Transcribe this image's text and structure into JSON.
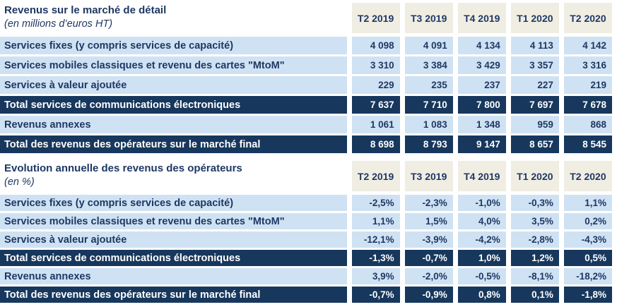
{
  "colors": {
    "dark_row_bg": "#17375d",
    "light_row_bg": "#cfe2f3",
    "column_header_bg": "#f0ede3",
    "navy_text": "#1f3864",
    "dark_row_text": "#ffffff"
  },
  "chart_data": [
    {
      "type": "table",
      "title": "Revenus sur le marché de détail",
      "subtitle": "(en millions d’euros HT)",
      "unit": "millions d’euros HT",
      "columns": [
        "T2 2019",
        "T3 2019",
        "T4 2019",
        "T1 2020",
        "T2 2020"
      ],
      "rows": [
        {
          "label": "Services fixes (y compris services de capacité)",
          "style": "light",
          "display": [
            "4 098",
            "4 091",
            "4 134",
            "4 113",
            "4 142"
          ],
          "values": [
            4098,
            4091,
            4134,
            4113,
            4142
          ]
        },
        {
          "label": "Services mobiles classiques et revenu des cartes \"MtoM\"",
          "style": "light",
          "display": [
            "3 310",
            "3 384",
            "3 429",
            "3 357",
            "3 316"
          ],
          "values": [
            3310,
            3384,
            3429,
            3357,
            3316
          ]
        },
        {
          "label": "Services à valeur ajoutée",
          "style": "light",
          "display": [
            "229",
            "235",
            "237",
            "227",
            "219"
          ],
          "values": [
            229,
            235,
            237,
            227,
            219
          ]
        },
        {
          "label": "Total services de communications électroniques",
          "style": "dark",
          "display": [
            "7 637",
            "7 710",
            "7 800",
            "7 697",
            "7 678"
          ],
          "values": [
            7637,
            7710,
            7800,
            7697,
            7678
          ]
        },
        {
          "label": "Revenus annexes",
          "style": "light",
          "display": [
            "1 061",
            "1 083",
            "1 348",
            "959",
            "868"
          ],
          "values": [
            1061,
            1083,
            1348,
            959,
            868
          ]
        },
        {
          "label": "Total des revenus des opérateurs sur le marché final",
          "style": "dark",
          "display": [
            "8 698",
            "8 793",
            "9 147",
            "8 657",
            "8 545"
          ],
          "values": [
            8698,
            8793,
            9147,
            8657,
            8545
          ]
        }
      ]
    },
    {
      "type": "table",
      "title": "Evolution annuelle des revenus des opérateurs",
      "subtitle": "(en %)",
      "unit": "%",
      "columns": [
        "T2 2019",
        "T3 2019",
        "T4 2019",
        "T1 2020",
        "T2 2020"
      ],
      "rows": [
        {
          "label": "Services fixes (y compris services de capacité)",
          "style": "light",
          "display": [
            "-2,5%",
            "-2,3%",
            "-1,0%",
            "-0,3%",
            "1,1%"
          ],
          "values": [
            -2.5,
            -2.3,
            -1.0,
            -0.3,
            1.1
          ]
        },
        {
          "label": "Services mobiles classiques et revenu des cartes \"MtoM\"",
          "style": "light",
          "display": [
            "1,1%",
            "1,5%",
            "4,0%",
            "3,5%",
            "0,2%"
          ],
          "values": [
            1.1,
            1.5,
            4.0,
            3.5,
            0.2
          ]
        },
        {
          "label": "Services à valeur ajoutée",
          "style": "light",
          "display": [
            "-12,1%",
            "-3,9%",
            "-4,2%",
            "-2,8%",
            "-4,3%"
          ],
          "values": [
            -12.1,
            -3.9,
            -4.2,
            -2.8,
            -4.3
          ]
        },
        {
          "label": "Total services de communications électroniques",
          "style": "dark",
          "display": [
            "-1,3%",
            "-0,7%",
            "1,0%",
            "1,2%",
            "0,5%"
          ],
          "values": [
            -1.3,
            -0.7,
            1.0,
            1.2,
            0.5
          ]
        },
        {
          "label": "Revenus annexes",
          "style": "light",
          "display": [
            "3,9%",
            "-2,0%",
            "-0,5%",
            "-8,1%",
            "-18,2%"
          ],
          "values": [
            3.9,
            -2.0,
            -0.5,
            -8.1,
            -18.2
          ]
        },
        {
          "label": "Total des revenus des opérateurs sur le marché final",
          "style": "dark",
          "display": [
            "-0,7%",
            "-0,9%",
            "0,8%",
            "0,1%",
            "-1,8%"
          ],
          "values": [
            -0.7,
            -0.9,
            0.8,
            0.1,
            -1.8
          ]
        }
      ]
    }
  ]
}
